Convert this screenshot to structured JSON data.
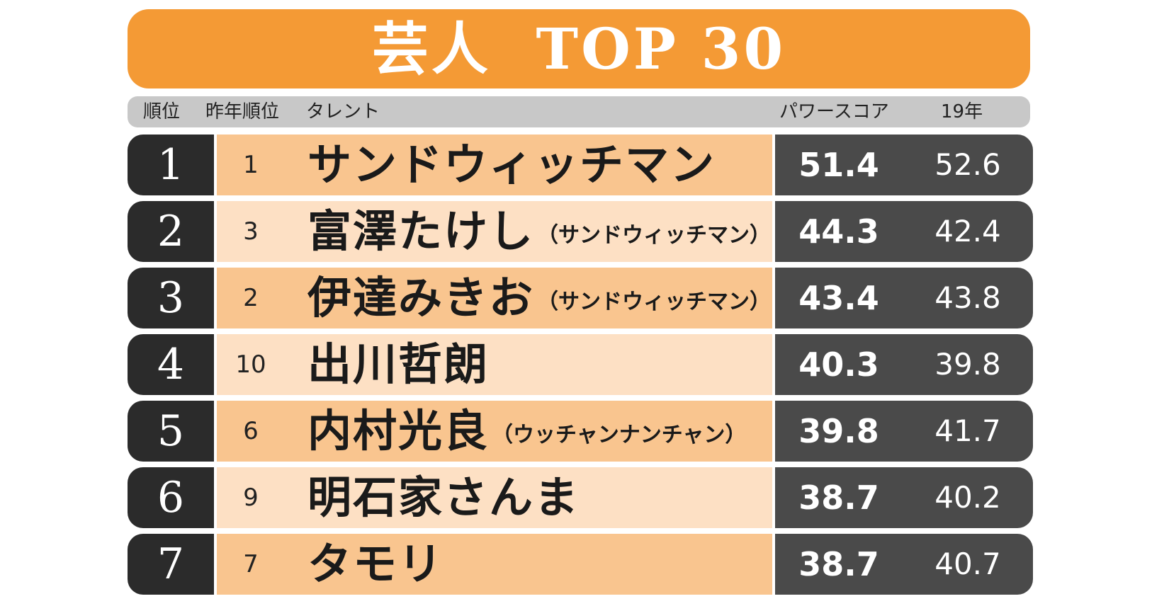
{
  "title": "芸人  TOP 30",
  "header": {
    "rank": "順位",
    "prev_rank": "昨年順位",
    "talent": "タレント",
    "power_score": "パワースコア",
    "prev_year": "19年"
  },
  "rows": [
    {
      "rank": "1",
      "prev_rank": "1",
      "name": "サンドウィッチマン",
      "group": "",
      "power": "51.4",
      "prev_score": "52.6",
      "shade": "dark"
    },
    {
      "rank": "2",
      "prev_rank": "3",
      "name": "富澤たけし",
      "group": "（サンドウィッチマン）",
      "power": "44.3",
      "prev_score": "42.4",
      "shade": "light"
    },
    {
      "rank": "3",
      "prev_rank": "2",
      "name": "伊達みきお",
      "group": "（サンドウィッチマン）",
      "power": "43.4",
      "prev_score": "43.8",
      "shade": "dark"
    },
    {
      "rank": "4",
      "prev_rank": "10",
      "name": "出川哲朗",
      "group": "",
      "power": "40.3",
      "prev_score": "39.8",
      "shade": "light"
    },
    {
      "rank": "5",
      "prev_rank": "6",
      "name": "内村光良",
      "group": "（ウッチャンナンチャン）",
      "power": "39.8",
      "prev_score": "41.7",
      "shade": "dark"
    },
    {
      "rank": "6",
      "prev_rank": "9",
      "name": "明石家さんま",
      "group": "",
      "power": "38.7",
      "prev_score": "40.2",
      "shade": "light"
    },
    {
      "rank": "7",
      "prev_rank": "7",
      "name": "タモリ",
      "group": "",
      "power": "38.7",
      "prev_score": "40.7",
      "shade": "dark"
    }
  ],
  "colors": {
    "title_bg": "#f49a35",
    "header_bg": "#c8c8c8",
    "rank_bg": "#2b2b2b",
    "name_dark_bg": "#f9c58f",
    "name_light_bg": "#fde0c4",
    "score_bg": "#4a4a4a"
  }
}
